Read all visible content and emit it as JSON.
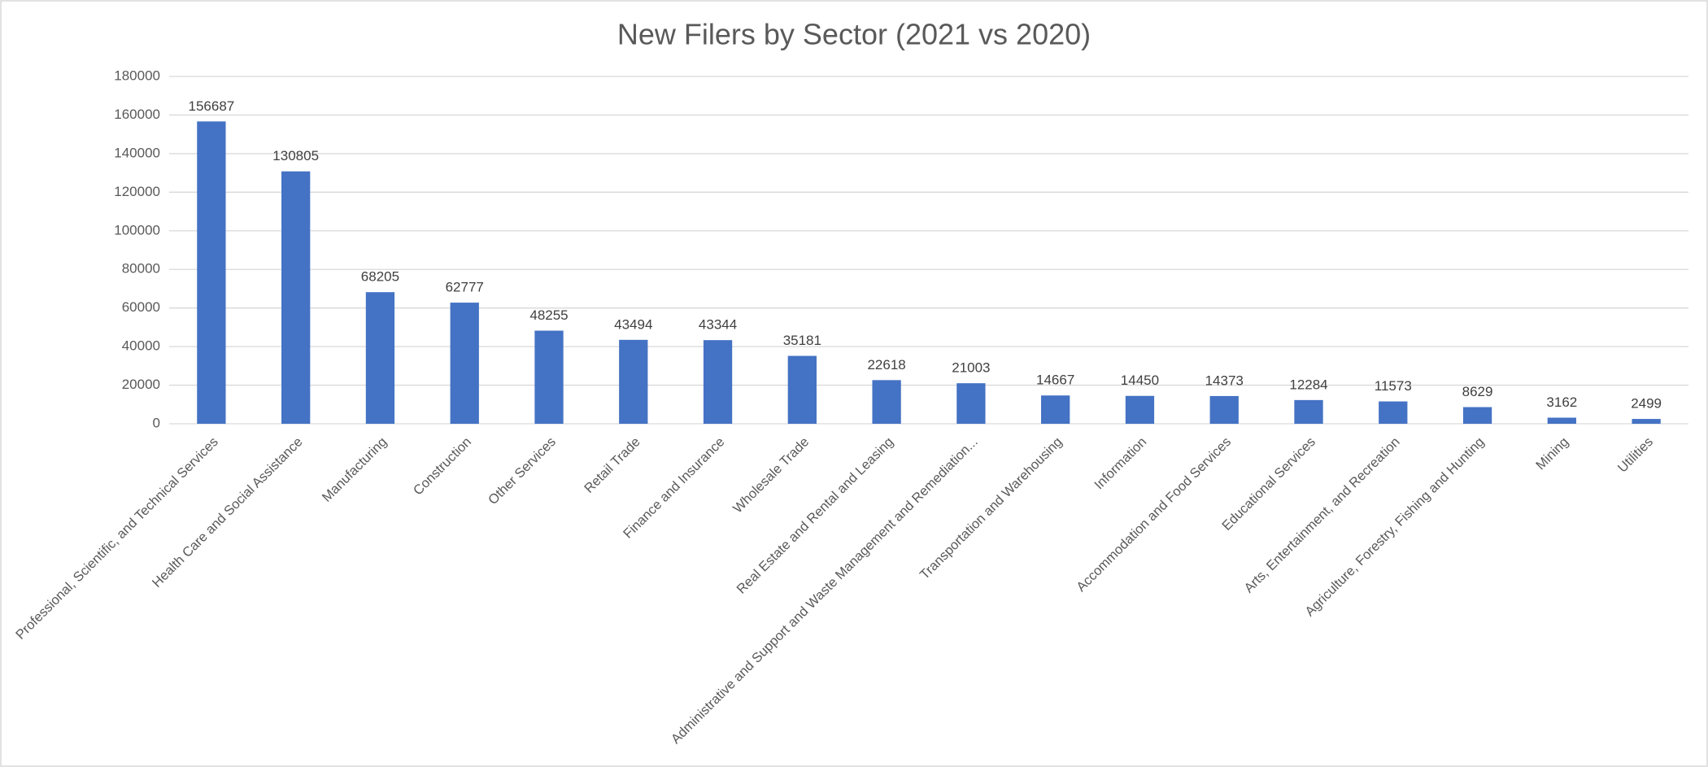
{
  "chart_data": {
    "type": "bar",
    "title": "New Filers by Sector (2021 vs 2020)",
    "categories": [
      "Professional, Scientific, and Technical Services",
      "Health Care and Social Assistance",
      "Manufacturing",
      "Construction",
      "Other Services",
      "Retail Trade",
      "Finance and Insurance",
      "Wholesale Trade",
      "Real Estate and Rental and Leasing",
      "Administrative and Support and Waste Management and Remediation...",
      "Transportation and Warehousing",
      "Information",
      "Accommodation and Food Services",
      "Educational Services",
      "Arts, Entertainment, and Recreation",
      "Agriculture, Forestry, Fishing and Hunting",
      "Mining",
      "Utilities"
    ],
    "values": [
      156687,
      130805,
      68205,
      62777,
      48255,
      43494,
      43344,
      35181,
      22618,
      21003,
      14667,
      14450,
      14373,
      12284,
      11573,
      8629,
      3162,
      2499
    ],
    "color": "#4472c4",
    "ylim": [
      0,
      180000
    ],
    "yticks": [
      0,
      20000,
      40000,
      60000,
      80000,
      100000,
      120000,
      140000,
      160000,
      180000
    ],
    "grid": true
  }
}
